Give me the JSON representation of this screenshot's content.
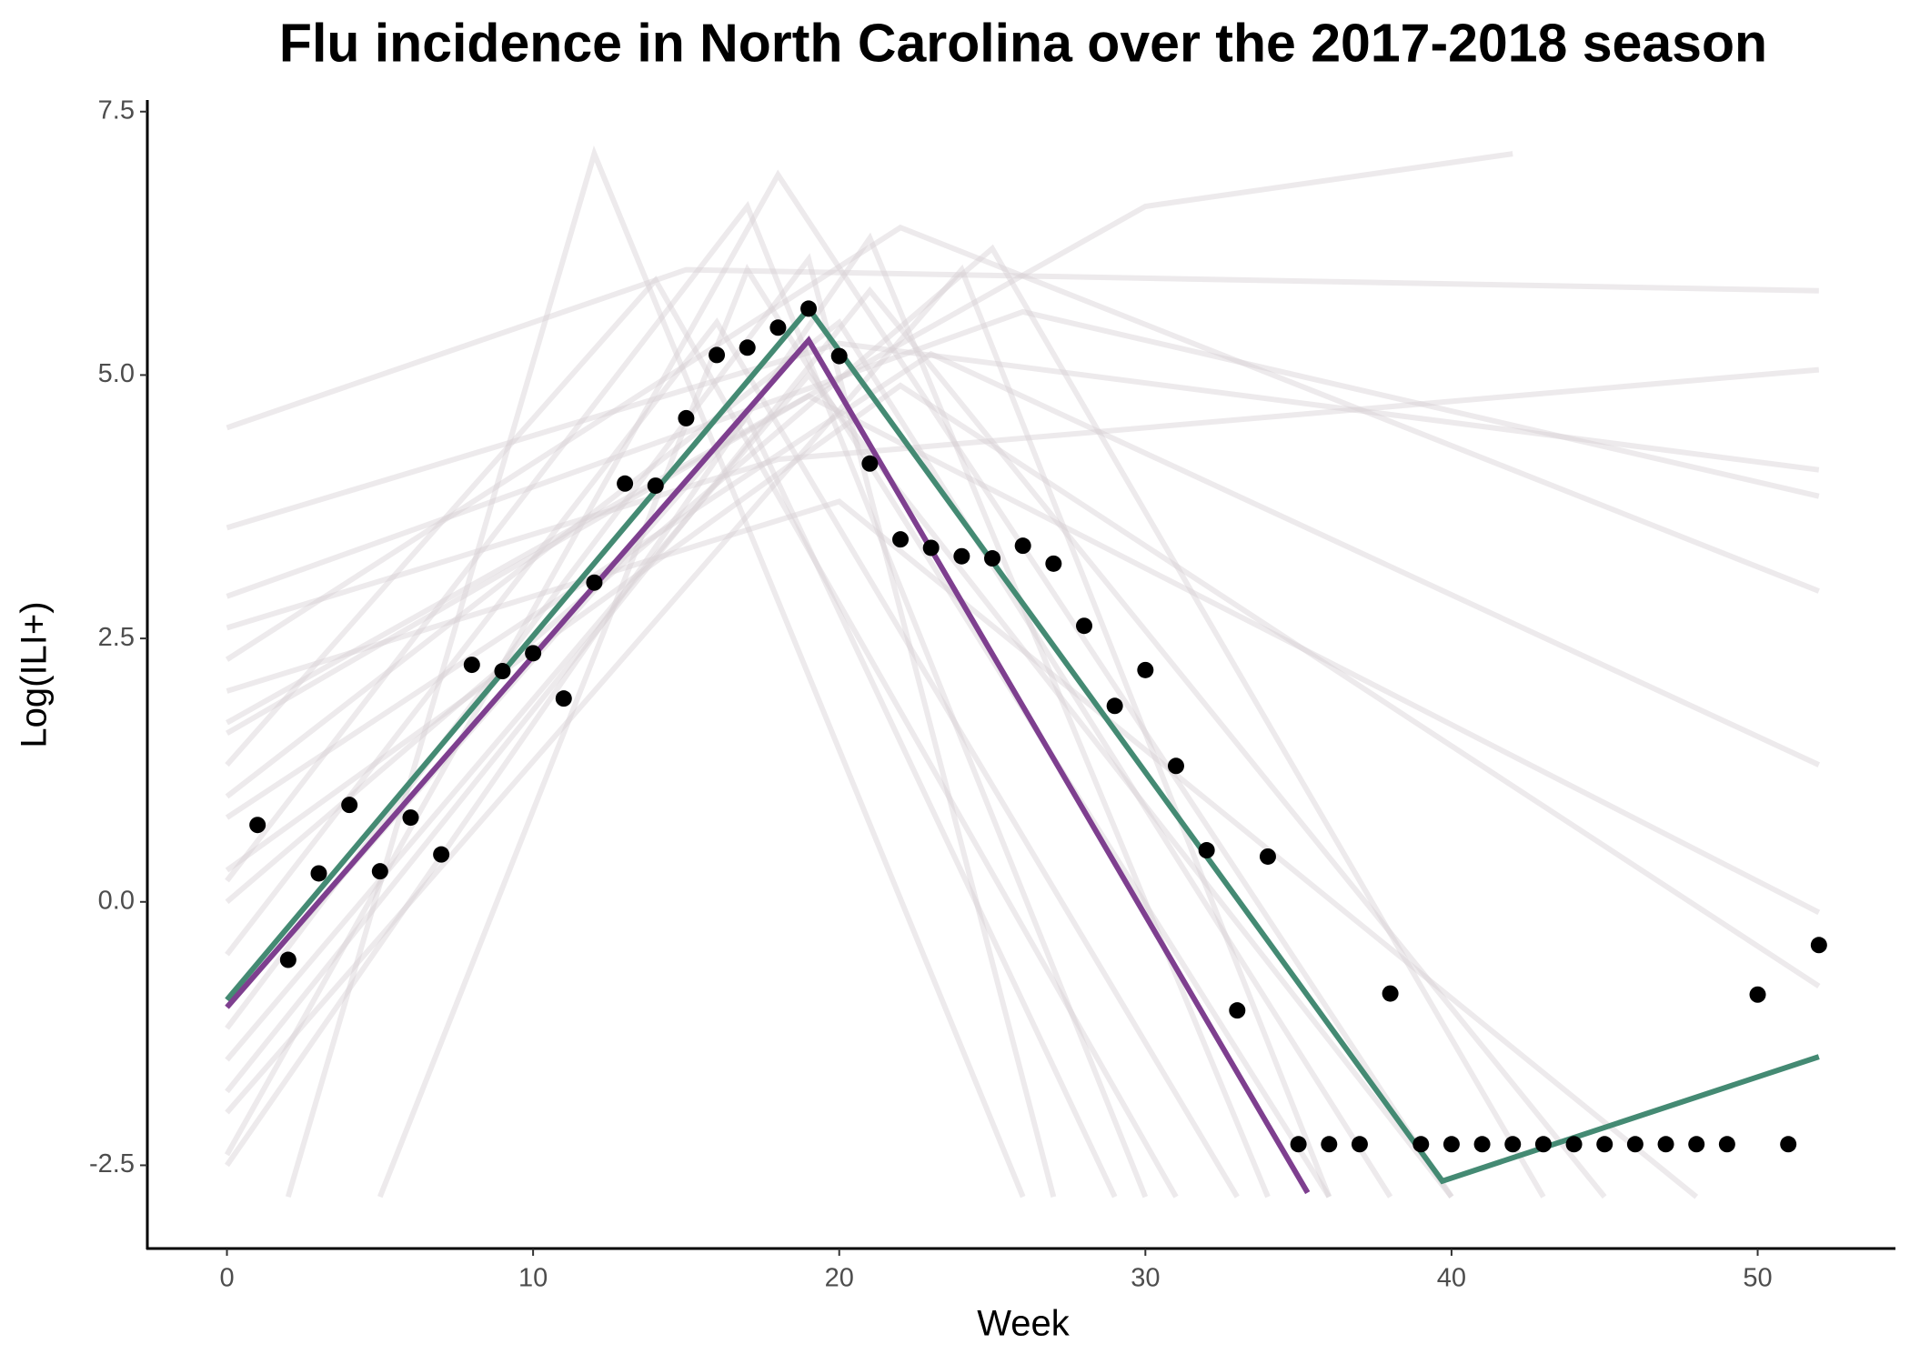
{
  "chart_data": {
    "type": "line",
    "title": "Flu incidence in North Carolina over the 2017-2018 season",
    "x_label": "Week",
    "y_label": "Log(ILI+)",
    "xlim": [
      -2.6,
      54.5
    ],
    "ylim": [
      -3.29,
      7.61
    ],
    "xticks": [
      0,
      10,
      20,
      30,
      40,
      50
    ],
    "yticks": [
      -2.5,
      {
        "value": 0,
        "label": "0.0"
      },
      2.5,
      {
        "value": 5,
        "label": "5.0"
      },
      7.5
    ],
    "grid": false,
    "series": [
      {
        "type": "line",
        "color": "#d8d0d4",
        "opacity": 0.45,
        "x": [
          0,
          19,
          27
        ],
        "values": [
          -1.2,
          6.1,
          -2.8
        ]
      },
      {
        "type": "line",
        "color": "#d8d0d4",
        "opacity": 0.45,
        "x": [
          0,
          17,
          30
        ],
        "values": [
          0.2,
          6.6,
          -2.8
        ]
      },
      {
        "type": "line",
        "color": "#d8d0d4",
        "opacity": 0.45,
        "x": [
          0,
          21,
          34
        ],
        "values": [
          -2.5,
          6.3,
          -2.8
        ]
      },
      {
        "type": "line",
        "color": "#d8d0d4",
        "opacity": 0.45,
        "x": [
          0,
          15,
          52
        ],
        "values": [
          4.5,
          6.0,
          5.8
        ]
      },
      {
        "type": "line",
        "color": "#d8d0d4",
        "opacity": 0.45,
        "x": [
          0,
          20,
          52
        ],
        "values": [
          3.55,
          5.3,
          4.1
        ]
      },
      {
        "type": "line",
        "color": "#d8d0d4",
        "opacity": 0.45,
        "x": [
          0,
          18,
          52
        ],
        "values": [
          2.6,
          4.2,
          5.05
        ]
      },
      {
        "type": "line",
        "color": "#d8d0d4",
        "opacity": 0.45,
        "x": [
          0,
          22,
          52
        ],
        "values": [
          2.3,
          6.4,
          2.95
        ]
      },
      {
        "type": "line",
        "color": "#d8d0d4",
        "opacity": 0.45,
        "x": [
          2,
          12,
          26
        ],
        "values": [
          -2.8,
          7.1,
          -2.8
        ]
      },
      {
        "type": "line",
        "color": "#d8d0d4",
        "opacity": 0.45,
        "x": [
          0,
          20,
          38
        ],
        "values": [
          1.0,
          5.5,
          -2.8
        ]
      },
      {
        "type": "line",
        "color": "#d8d0d4",
        "opacity": 0.45,
        "x": [
          0,
          24,
          36
        ],
        "values": [
          -2.0,
          6.0,
          -2.8
        ]
      },
      {
        "type": "line",
        "color": "#d8d0d4",
        "opacity": 0.45,
        "x": [
          0,
          19,
          52
        ],
        "values": [
          1.6,
          4.8,
          -0.1
        ]
      },
      {
        "type": "line",
        "color": "#d8d0d4",
        "opacity": 0.45,
        "x": [
          0,
          23,
          52
        ],
        "values": [
          0.8,
          5.2,
          1.3
        ]
      },
      {
        "type": "line",
        "color": "#d8d0d4",
        "opacity": 0.45,
        "x": [
          0,
          16,
          33
        ],
        "values": [
          -0.5,
          5.5,
          -2.8
        ]
      },
      {
        "type": "line",
        "color": "#d8d0d4",
        "opacity": 0.45,
        "x": [
          0,
          21,
          45
        ],
        "values": [
          -1.8,
          5.8,
          -2.8
        ]
      },
      {
        "type": "line",
        "color": "#d8d0d4",
        "opacity": 0.45,
        "x": [
          0,
          26,
          52
        ],
        "values": [
          2.9,
          5.6,
          3.85
        ]
      },
      {
        "type": "line",
        "color": "#d8d0d4",
        "opacity": 0.45,
        "x": [
          0,
          14,
          31
        ],
        "values": [
          1.3,
          5.9,
          -2.8
        ]
      },
      {
        "type": "line",
        "color": "#d8d0d4",
        "opacity": 0.45,
        "x": [
          0,
          18,
          40
        ],
        "values": [
          -2.4,
          6.9,
          -2.8
        ]
      },
      {
        "type": "line",
        "color": "#d8d0d4",
        "opacity": 0.45,
        "x": [
          0,
          22,
          52
        ],
        "values": [
          0.3,
          4.9,
          -0.8
        ]
      },
      {
        "type": "line",
        "color": "#d8d0d4",
        "opacity": 0.45,
        "x": [
          0,
          17,
          29
        ],
        "values": [
          -1.0,
          4.6,
          -2.8
        ]
      },
      {
        "type": "line",
        "color": "#d8d0d4",
        "opacity": 0.45,
        "x": [
          5,
          17,
          36
        ],
        "values": [
          -2.8,
          6.0,
          -2.8
        ]
      },
      {
        "type": "line",
        "color": "#d8d0d4",
        "opacity": 0.45,
        "x": [
          0,
          25,
          43
        ],
        "values": [
          0.0,
          6.2,
          -2.8
        ]
      },
      {
        "type": "line",
        "color": "#d8d0d4",
        "opacity": 0.45,
        "x": [
          0,
          20,
          48
        ],
        "values": [
          2.0,
          3.8,
          -2.8
        ]
      },
      {
        "type": "line",
        "color": "#d8d0d4",
        "opacity": 0.45,
        "x": [
          0,
          30,
          42
        ],
        "values": [
          1.7,
          6.6,
          7.1
        ]
      },
      {
        "type": "line",
        "color": "#d8d0d4",
        "opacity": 0.45,
        "x": [
          0,
          19,
          40
        ],
        "values": [
          -1.5,
          5.0,
          -2.8
        ]
      },
      {
        "type": "line",
        "color": "#448a73",
        "opacity": 1,
        "x": [
          0,
          19,
          39.7,
          52
        ],
        "values": [
          -0.93,
          5.63,
          -2.65,
          -1.47
        ]
      },
      {
        "type": "line",
        "color": "#7e3f8f",
        "opacity": 1,
        "x": [
          0,
          19,
          35.3
        ],
        "values": [
          -1.0,
          5.33,
          -2.76
        ]
      },
      {
        "type": "scatter",
        "color": "#000000",
        "opacity": 1,
        "x": [
          1,
          2,
          3,
          4,
          5,
          6,
          7,
          8,
          9,
          10,
          11,
          12,
          13,
          14,
          15,
          16,
          17,
          18,
          19,
          20,
          21,
          22,
          23,
          24,
          25,
          26,
          27,
          28,
          29,
          30,
          31,
          32,
          33,
          34,
          35,
          36,
          37,
          38,
          39,
          40,
          41,
          42,
          43,
          44,
          45,
          46,
          47,
          48,
          49,
          50,
          51,
          52
        ],
        "values": [
          0.73,
          -0.55,
          0.27,
          0.92,
          0.29,
          0.8,
          0.45,
          2.25,
          2.19,
          2.36,
          1.93,
          3.03,
          3.97,
          3.95,
          4.59,
          5.19,
          5.26,
          5.45,
          5.63,
          5.18,
          4.16,
          3.44,
          3.36,
          3.28,
          3.26,
          3.38,
          3.21,
          2.62,
          1.86,
          2.2,
          1.29,
          0.49,
          -1.03,
          0.43,
          -2.3,
          -2.3,
          -2.3,
          -0.87,
          -2.3,
          -2.3,
          -2.3,
          -2.3,
          -2.3,
          -2.3,
          -2.3,
          -2.3,
          -2.3,
          -2.3,
          -2.3,
          -0.88,
          -2.3,
          -0.41
        ]
      }
    ]
  }
}
